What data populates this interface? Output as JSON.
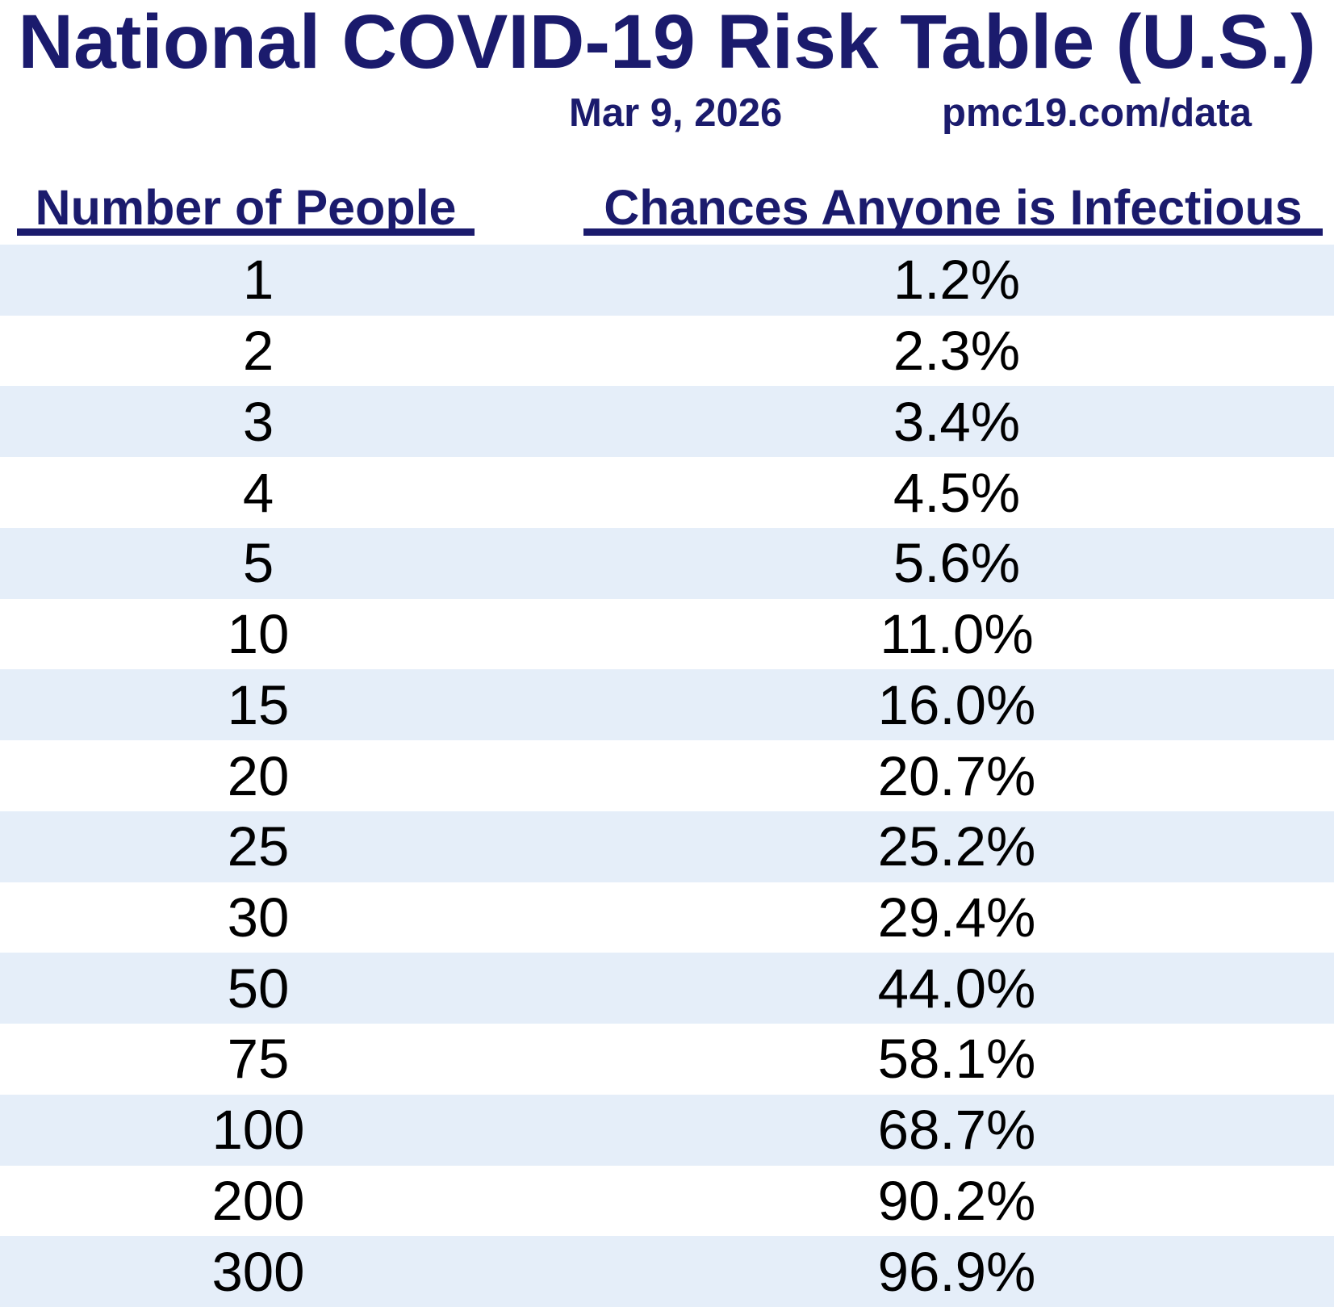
{
  "title": "National COVID-19 Risk Table (U.S.)",
  "subtitle": {
    "date": "Mar 9, 2026",
    "source": "pmc19.com/data"
  },
  "colors": {
    "navy": "#1b1b6d",
    "stripe": "#e5eef9",
    "text": "#000000"
  },
  "table": {
    "columns": [
      "Number of People",
      "Chances Anyone is Infectious"
    ],
    "rows": [
      {
        "people": "1",
        "chance": "1.2%"
      },
      {
        "people": "2",
        "chance": "2.3%"
      },
      {
        "people": "3",
        "chance": "3.4%"
      },
      {
        "people": "4",
        "chance": "4.5%"
      },
      {
        "people": "5",
        "chance": "5.6%"
      },
      {
        "people": "10",
        "chance": "11.0%"
      },
      {
        "people": "15",
        "chance": "16.0%"
      },
      {
        "people": "20",
        "chance": "20.7%"
      },
      {
        "people": "25",
        "chance": "25.2%"
      },
      {
        "people": "30",
        "chance": "29.4%"
      },
      {
        "people": "50",
        "chance": "44.0%"
      },
      {
        "people": "75",
        "chance": "58.1%"
      },
      {
        "people": "100",
        "chance": "68.7%"
      },
      {
        "people": "200",
        "chance": "90.2%"
      },
      {
        "people": "300",
        "chance": "96.9%"
      }
    ]
  },
  "chart_data": {
    "type": "table",
    "title": "National COVID-19 Risk Table (U.S.)",
    "subtitle_date": "Mar 9, 2026",
    "subtitle_source": "pmc19.com/data",
    "columns": [
      "Number of People",
      "Chances Anyone is Infectious"
    ],
    "categories": [
      1,
      2,
      3,
      4,
      5,
      10,
      15,
      20,
      25,
      30,
      50,
      75,
      100,
      200,
      300
    ],
    "values_percent": [
      1.2,
      2.3,
      3.4,
      4.5,
      5.6,
      11.0,
      16.0,
      20.7,
      25.2,
      29.4,
      44.0,
      58.1,
      68.7,
      90.2,
      96.9
    ],
    "layout_hints": {
      "row_striping": "alternating light blue starting with first data row",
      "header_underlined": true,
      "grid": false
    }
  }
}
